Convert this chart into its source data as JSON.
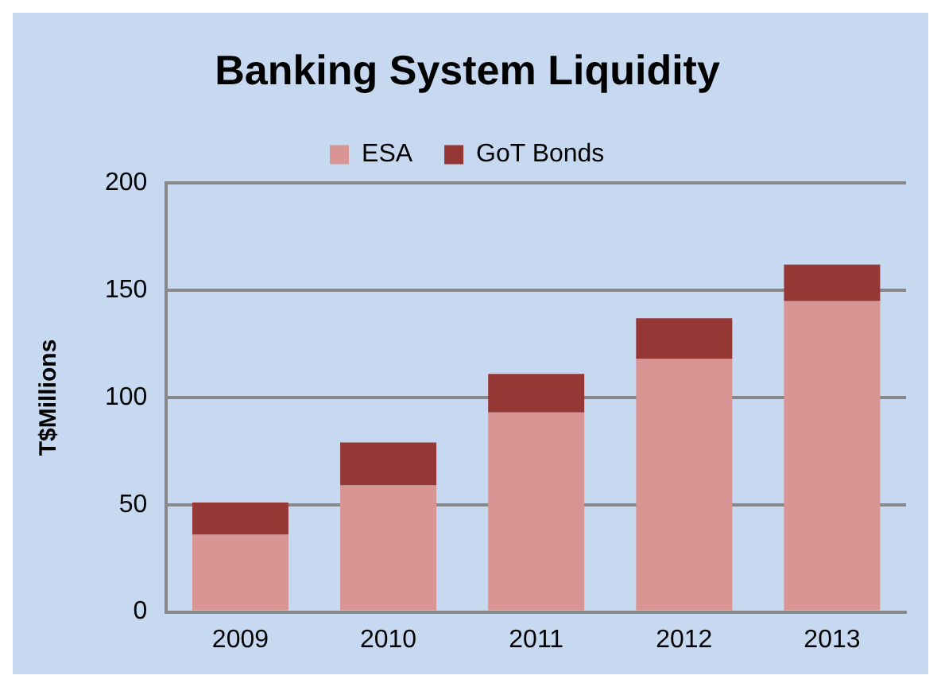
{
  "chart_data": {
    "type": "bar",
    "title": "Banking System Liquidity",
    "ylabel": "T$Millions",
    "categories": [
      "2009",
      "2010",
      "2011",
      "2012",
      "2013"
    ],
    "series": [
      {
        "name": "ESA",
        "color": "#d99594",
        "values": [
          36,
          59,
          93,
          118,
          145
        ]
      },
      {
        "name": "GoT Bonds",
        "color": "#953735",
        "values": [
          15,
          20,
          18,
          19,
          17
        ]
      }
    ],
    "stacked": true,
    "ylim": [
      0,
      200
    ],
    "yticks": [
      0,
      50,
      100,
      150,
      200
    ],
    "grid": "y",
    "legend": "top"
  }
}
